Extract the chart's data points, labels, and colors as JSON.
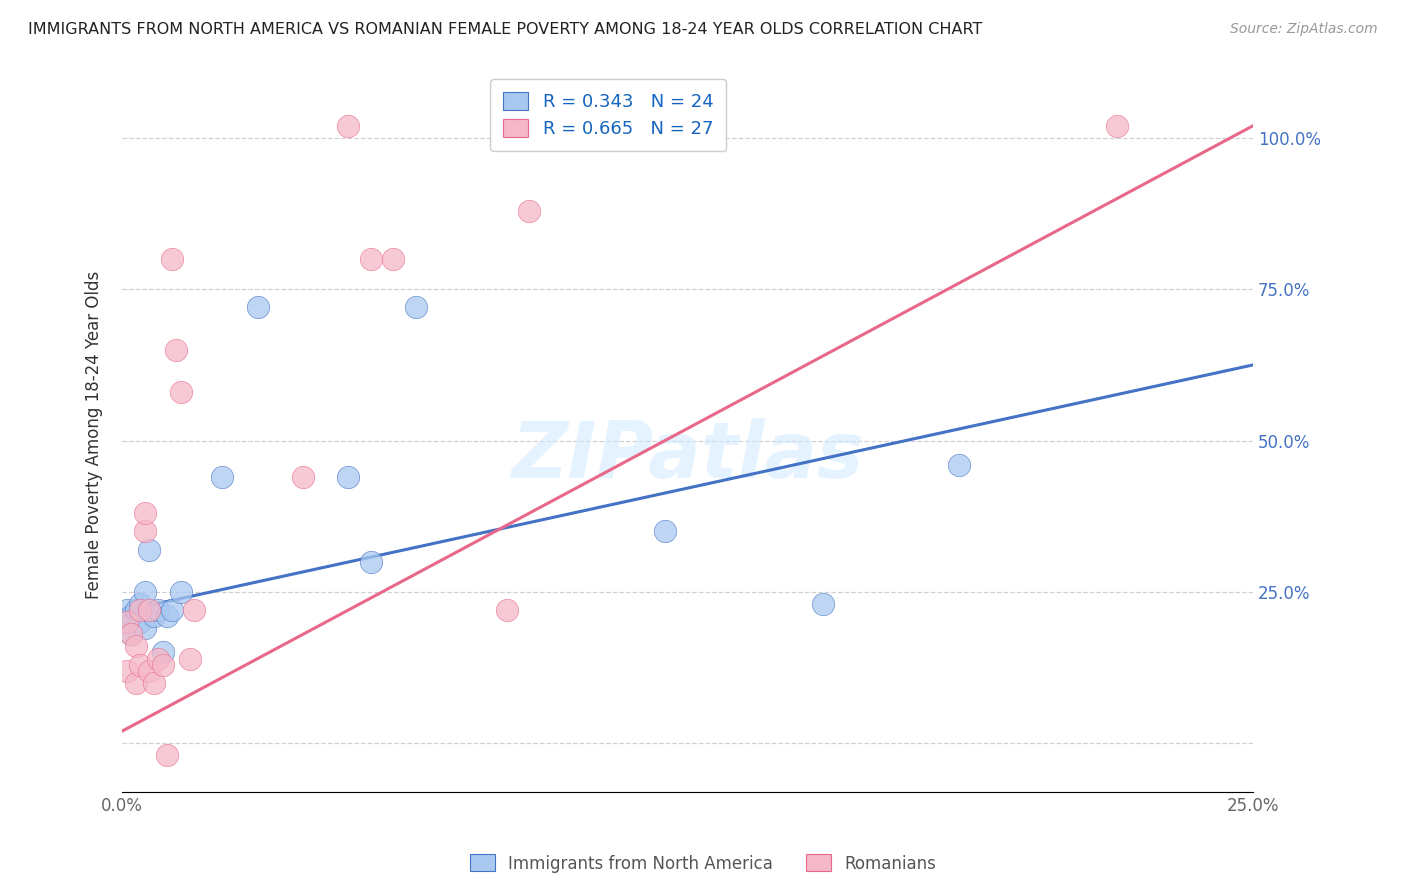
{
  "title": "IMMIGRANTS FROM NORTH AMERICA VS ROMANIAN FEMALE POVERTY AMONG 18-24 YEAR OLDS CORRELATION CHART",
  "source": "Source: ZipAtlas.com",
  "ylabel": "Female Poverty Among 18-24 Year Olds",
  "xlim": [
    0,
    0.25
  ],
  "ylim": [
    -0.08,
    1.1
  ],
  "yticks": [
    0.0,
    0.25,
    0.5,
    0.75,
    1.0
  ],
  "right_ytick_labels": [
    "",
    "25.0%",
    "50.0%",
    "75.0%",
    "100.0%"
  ],
  "xticks": [
    0.0,
    0.05,
    0.1,
    0.15,
    0.2,
    0.25
  ],
  "xtick_labels": [
    "0.0%",
    "",
    "",
    "",
    "",
    "25.0%"
  ],
  "blue_R": 0.343,
  "blue_N": 24,
  "pink_R": 0.665,
  "pink_N": 27,
  "blue_color": "#A8C8F0",
  "pink_color": "#F5B8C8",
  "blue_line_color": "#4472C4",
  "pink_line_color": "#E8688A",
  "blue_scatter_x": [
    0.001,
    0.001,
    0.002,
    0.002,
    0.003,
    0.004,
    0.004,
    0.005,
    0.005,
    0.006,
    0.007,
    0.008,
    0.009,
    0.01,
    0.011,
    0.013,
    0.022,
    0.03,
    0.05,
    0.055,
    0.065,
    0.12,
    0.155,
    0.185
  ],
  "blue_scatter_y": [
    0.22,
    0.2,
    0.21,
    0.18,
    0.22,
    0.23,
    0.2,
    0.19,
    0.25,
    0.32,
    0.21,
    0.22,
    0.15,
    0.21,
    0.22,
    0.25,
    0.44,
    0.72,
    0.44,
    0.3,
    0.72,
    0.35,
    0.23,
    0.46
  ],
  "pink_scatter_x": [
    0.001,
    0.001,
    0.002,
    0.003,
    0.003,
    0.004,
    0.004,
    0.005,
    0.005,
    0.006,
    0.006,
    0.007,
    0.008,
    0.009,
    0.01,
    0.011,
    0.012,
    0.013,
    0.015,
    0.016,
    0.04,
    0.05,
    0.055,
    0.06,
    0.085,
    0.09,
    0.22
  ],
  "pink_scatter_y": [
    0.2,
    0.12,
    0.18,
    0.16,
    0.1,
    0.13,
    0.22,
    0.35,
    0.38,
    0.22,
    0.12,
    0.1,
    0.14,
    0.13,
    -0.02,
    0.8,
    0.65,
    0.58,
    0.14,
    0.22,
    0.44,
    1.02,
    0.8,
    0.8,
    0.22,
    0.88,
    1.02
  ],
  "blue_line_x0": 0.0,
  "blue_line_y0": 0.218,
  "blue_line_x1": 0.25,
  "blue_line_y1": 0.625,
  "pink_line_x0": 0.0,
  "pink_line_y0": 0.02,
  "pink_line_x1": 0.25,
  "pink_line_y1": 1.02,
  "watermark_text": "ZIPatlas",
  "legend_color": "#1565C0",
  "bottom_legend_color": "#555555"
}
